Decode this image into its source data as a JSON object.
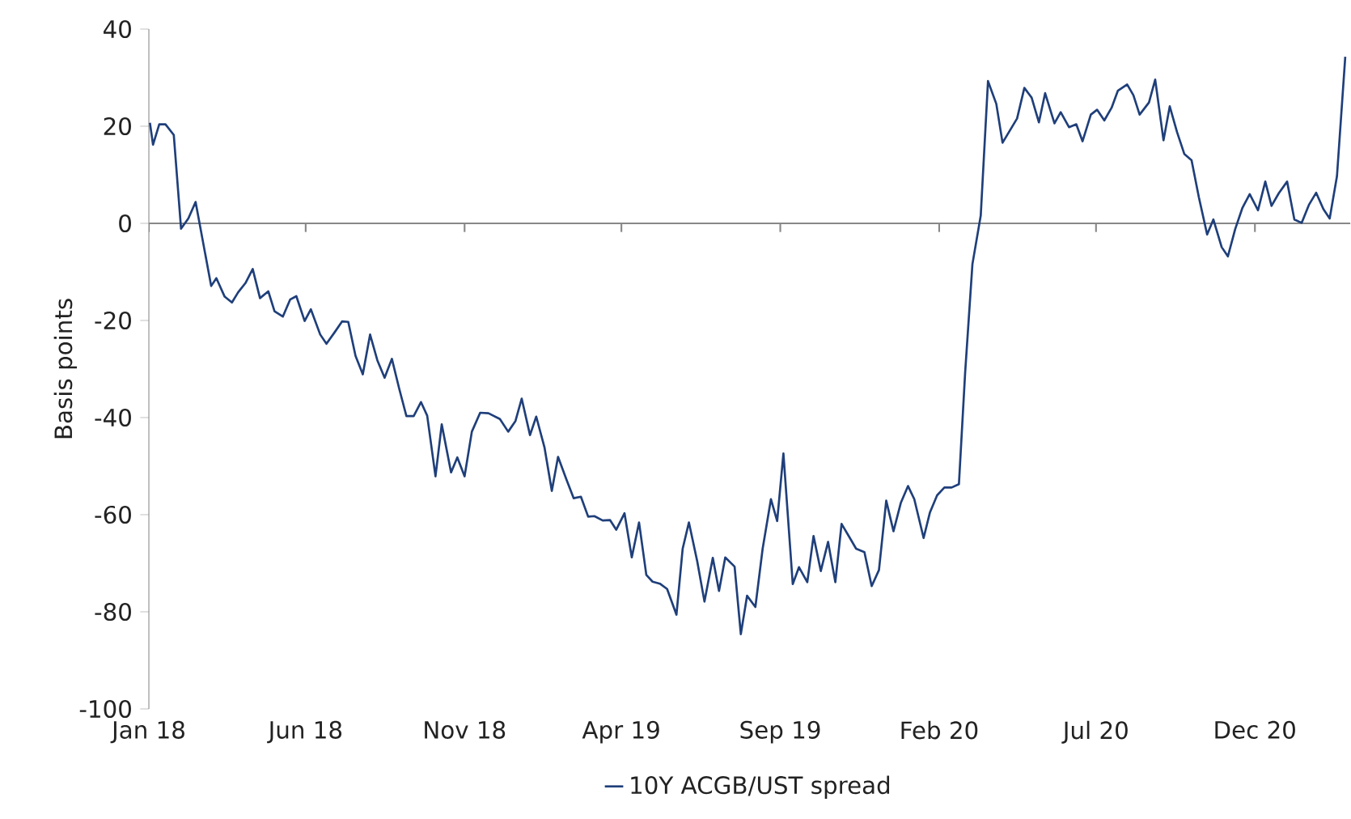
{
  "chart_data": {
    "type": "line",
    "ylabel": "Basis points",
    "legend": "bottom",
    "xlim": [
      "2018-01-01",
      "2021-03-03"
    ],
    "xticks": [
      {
        "value": "2018-01-01",
        "label": "Jan 18"
      },
      {
        "value": "2018-06-01",
        "label": "Jun 18"
      },
      {
        "value": "2018-11-01",
        "label": "Nov 18"
      },
      {
        "value": "2019-04-01",
        "label": "Apr 19"
      },
      {
        "value": "2019-09-01",
        "label": "Sep 19"
      },
      {
        "value": "2020-02-01",
        "label": "Feb 20"
      },
      {
        "value": "2020-07-01",
        "label": "Jul 20"
      },
      {
        "value": "2020-12-01",
        "label": "Dec 20"
      }
    ],
    "ylim": [
      -100,
      40
    ],
    "yticks": [
      {
        "value": -100,
        "label": "-100"
      },
      {
        "value": -80,
        "label": "-80"
      },
      {
        "value": -60,
        "label": "-60"
      },
      {
        "value": -40,
        "label": "-40"
      },
      {
        "value": -20,
        "label": "-20"
      },
      {
        "value": 0,
        "label": "0"
      },
      {
        "value": 20,
        "label": "20"
      },
      {
        "value": 40,
        "label": "40"
      }
    ],
    "series": [
      {
        "name": "10Y ACGB/UST spread",
        "color": "#1f3f7a",
        "x": [
          "2018-01-02",
          "2018-01-05",
          "2018-01-11",
          "2018-01-17",
          "2018-01-25",
          "2018-02-01",
          "2018-02-08",
          "2018-02-15",
          "2018-03-02",
          "2018-03-07",
          "2018-03-15",
          "2018-03-22",
          "2018-03-28",
          "2018-04-04",
          "2018-04-11",
          "2018-04-18",
          "2018-04-26",
          "2018-05-02",
          "2018-05-10",
          "2018-05-17",
          "2018-05-23",
          "2018-05-31",
          "2018-06-06",
          "2018-06-15",
          "2018-06-21",
          "2018-06-29",
          "2018-07-06",
          "2018-07-12",
          "2018-07-19",
          "2018-07-26",
          "2018-08-02",
          "2018-08-09",
          "2018-08-16",
          "2018-08-23",
          "2018-08-30",
          "2018-09-06",
          "2018-09-13",
          "2018-09-20",
          "2018-09-26",
          "2018-10-04",
          "2018-10-10",
          "2018-10-19",
          "2018-10-25",
          "2018-11-01",
          "2018-11-08",
          "2018-11-16",
          "2018-11-24",
          "2018-12-05",
          "2018-12-13",
          "2018-12-20",
          "2018-12-26",
          "2019-01-03",
          "2019-01-09",
          "2019-01-17",
          "2019-01-24",
          "2019-01-30",
          "2019-02-07",
          "2019-02-14",
          "2019-02-21",
          "2019-02-28",
          "2019-03-06",
          "2019-03-14",
          "2019-03-21",
          "2019-03-27",
          "2019-04-04",
          "2019-04-11",
          "2019-04-18",
          "2019-04-25",
          "2019-05-01",
          "2019-05-08",
          "2019-05-15",
          "2019-05-24",
          "2019-05-30",
          "2019-06-05",
          "2019-06-13",
          "2019-06-20",
          "2019-06-28",
          "2019-07-04",
          "2019-07-10",
          "2019-07-19",
          "2019-07-25",
          "2019-07-31",
          "2019-08-08",
          "2019-08-15",
          "2019-08-23",
          "2019-08-29",
          "2019-09-04",
          "2019-09-13",
          "2019-09-19",
          "2019-09-27",
          "2019-10-03",
          "2019-10-10",
          "2019-10-17",
          "2019-10-24",
          "2019-10-30",
          "2019-11-07",
          "2019-11-13",
          "2019-11-21",
          "2019-11-28",
          "2019-12-05",
          "2019-12-12",
          "2019-12-19",
          "2019-12-26",
          "2020-01-02",
          "2020-01-08",
          "2020-01-17",
          "2020-01-23",
          "2020-01-30",
          "2020-02-06",
          "2020-02-13",
          "2020-02-20",
          "2020-02-26",
          "2020-03-04",
          "2020-03-12",
          "2020-03-19",
          "2020-03-27",
          "2020-04-02",
          "2020-04-09",
          "2020-04-16",
          "2020-04-23",
          "2020-04-30",
          "2020-05-07",
          "2020-05-13",
          "2020-05-22",
          "2020-05-28",
          "2020-06-05",
          "2020-06-12",
          "2020-06-18",
          "2020-06-26",
          "2020-07-02",
          "2020-07-09",
          "2020-07-16",
          "2020-07-22",
          "2020-07-31",
          "2020-08-06",
          "2020-08-12",
          "2020-08-21",
          "2020-08-27",
          "2020-09-04",
          "2020-09-10",
          "2020-09-17",
          "2020-09-24",
          "2020-10-01",
          "2020-10-08",
          "2020-10-16",
          "2020-10-22",
          "2020-10-30",
          "2020-11-05",
          "2020-11-12",
          "2020-11-19",
          "2020-11-26",
          "2020-12-04",
          "2020-12-11",
          "2020-12-17",
          "2020-12-24",
          "2021-01-01",
          "2021-01-08",
          "2021-01-15",
          "2021-01-22",
          "2021-01-29",
          "2021-02-05",
          "2021-02-11",
          "2021-02-18",
          "2021-02-26"
        ],
        "values": [
          20.7,
          16.2,
          20.4,
          20.4,
          18.2,
          -1.1,
          1,
          4.4,
          -12.9,
          -11.3,
          -15.1,
          -16.3,
          -14.2,
          -12.3,
          -9.4,
          -15.4,
          -14,
          -18.1,
          -19.2,
          -15.7,
          -15,
          -20.1,
          -17.7,
          -22.9,
          -24.8,
          -22.4,
          -20.2,
          -20.3,
          -27.3,
          -31.1,
          -22.9,
          -28.2,
          -31.8,
          -27.9,
          -34,
          -39.7,
          -39.7,
          -36.8,
          -39.6,
          -52.1,
          -41.4,
          -51.3,
          -48.2,
          -52.1,
          -42.9,
          -39,
          -39.1,
          -40.3,
          -42.9,
          -40.7,
          -36.1,
          -43.6,
          -39.8,
          -46.2,
          -55.1,
          -48.1,
          -52.7,
          -56.6,
          -56.3,
          -60.4,
          -60.3,
          -61.2,
          -61.1,
          -63.1,
          -59.7,
          -68.8,
          -61.6,
          -72.4,
          -73.8,
          -74.2,
          -75.3,
          -80.6,
          -67,
          -61.6,
          -69.6,
          -77.9,
          -68.9,
          -75.7,
          -68.8,
          -70.7,
          -84.6,
          -76.7,
          -79,
          -67,
          -56.8,
          -61.3,
          -47.4,
          -74.3,
          -70.8,
          -73.9,
          -64.4,
          -71.6,
          -65.6,
          -73.9,
          -61.9,
          -64.8,
          -67,
          -67.7,
          -74.7,
          -71.4,
          -57.1,
          -63.4,
          -57.6,
          -54.1,
          -56.8,
          -64.8,
          -59.6,
          -56,
          -54.4,
          -54.4,
          -53.7,
          -30.7,
          -8.4,
          1.6,
          29.3,
          24.6,
          16.6,
          19.1,
          21.6,
          27.9,
          25.9,
          20.8,
          26.8,
          20.6,
          22.9,
          19.8,
          20.4,
          16.9,
          22.4,
          23.4,
          21.2,
          23.8,
          27.3,
          28.6,
          26.4,
          22.4,
          24.9,
          29.6,
          17.1,
          24.1,
          18.8,
          14.3,
          13,
          5.4,
          -2.3,
          0.8,
          -4.9,
          -6.8,
          -1.2,
          3.2,
          6,
          2.7,
          8.6,
          3.6,
          6.2,
          8.6,
          0.8,
          0.1,
          3.8,
          6.3,
          2.9,
          1,
          9.7,
          34.3
        ]
      }
    ]
  }
}
